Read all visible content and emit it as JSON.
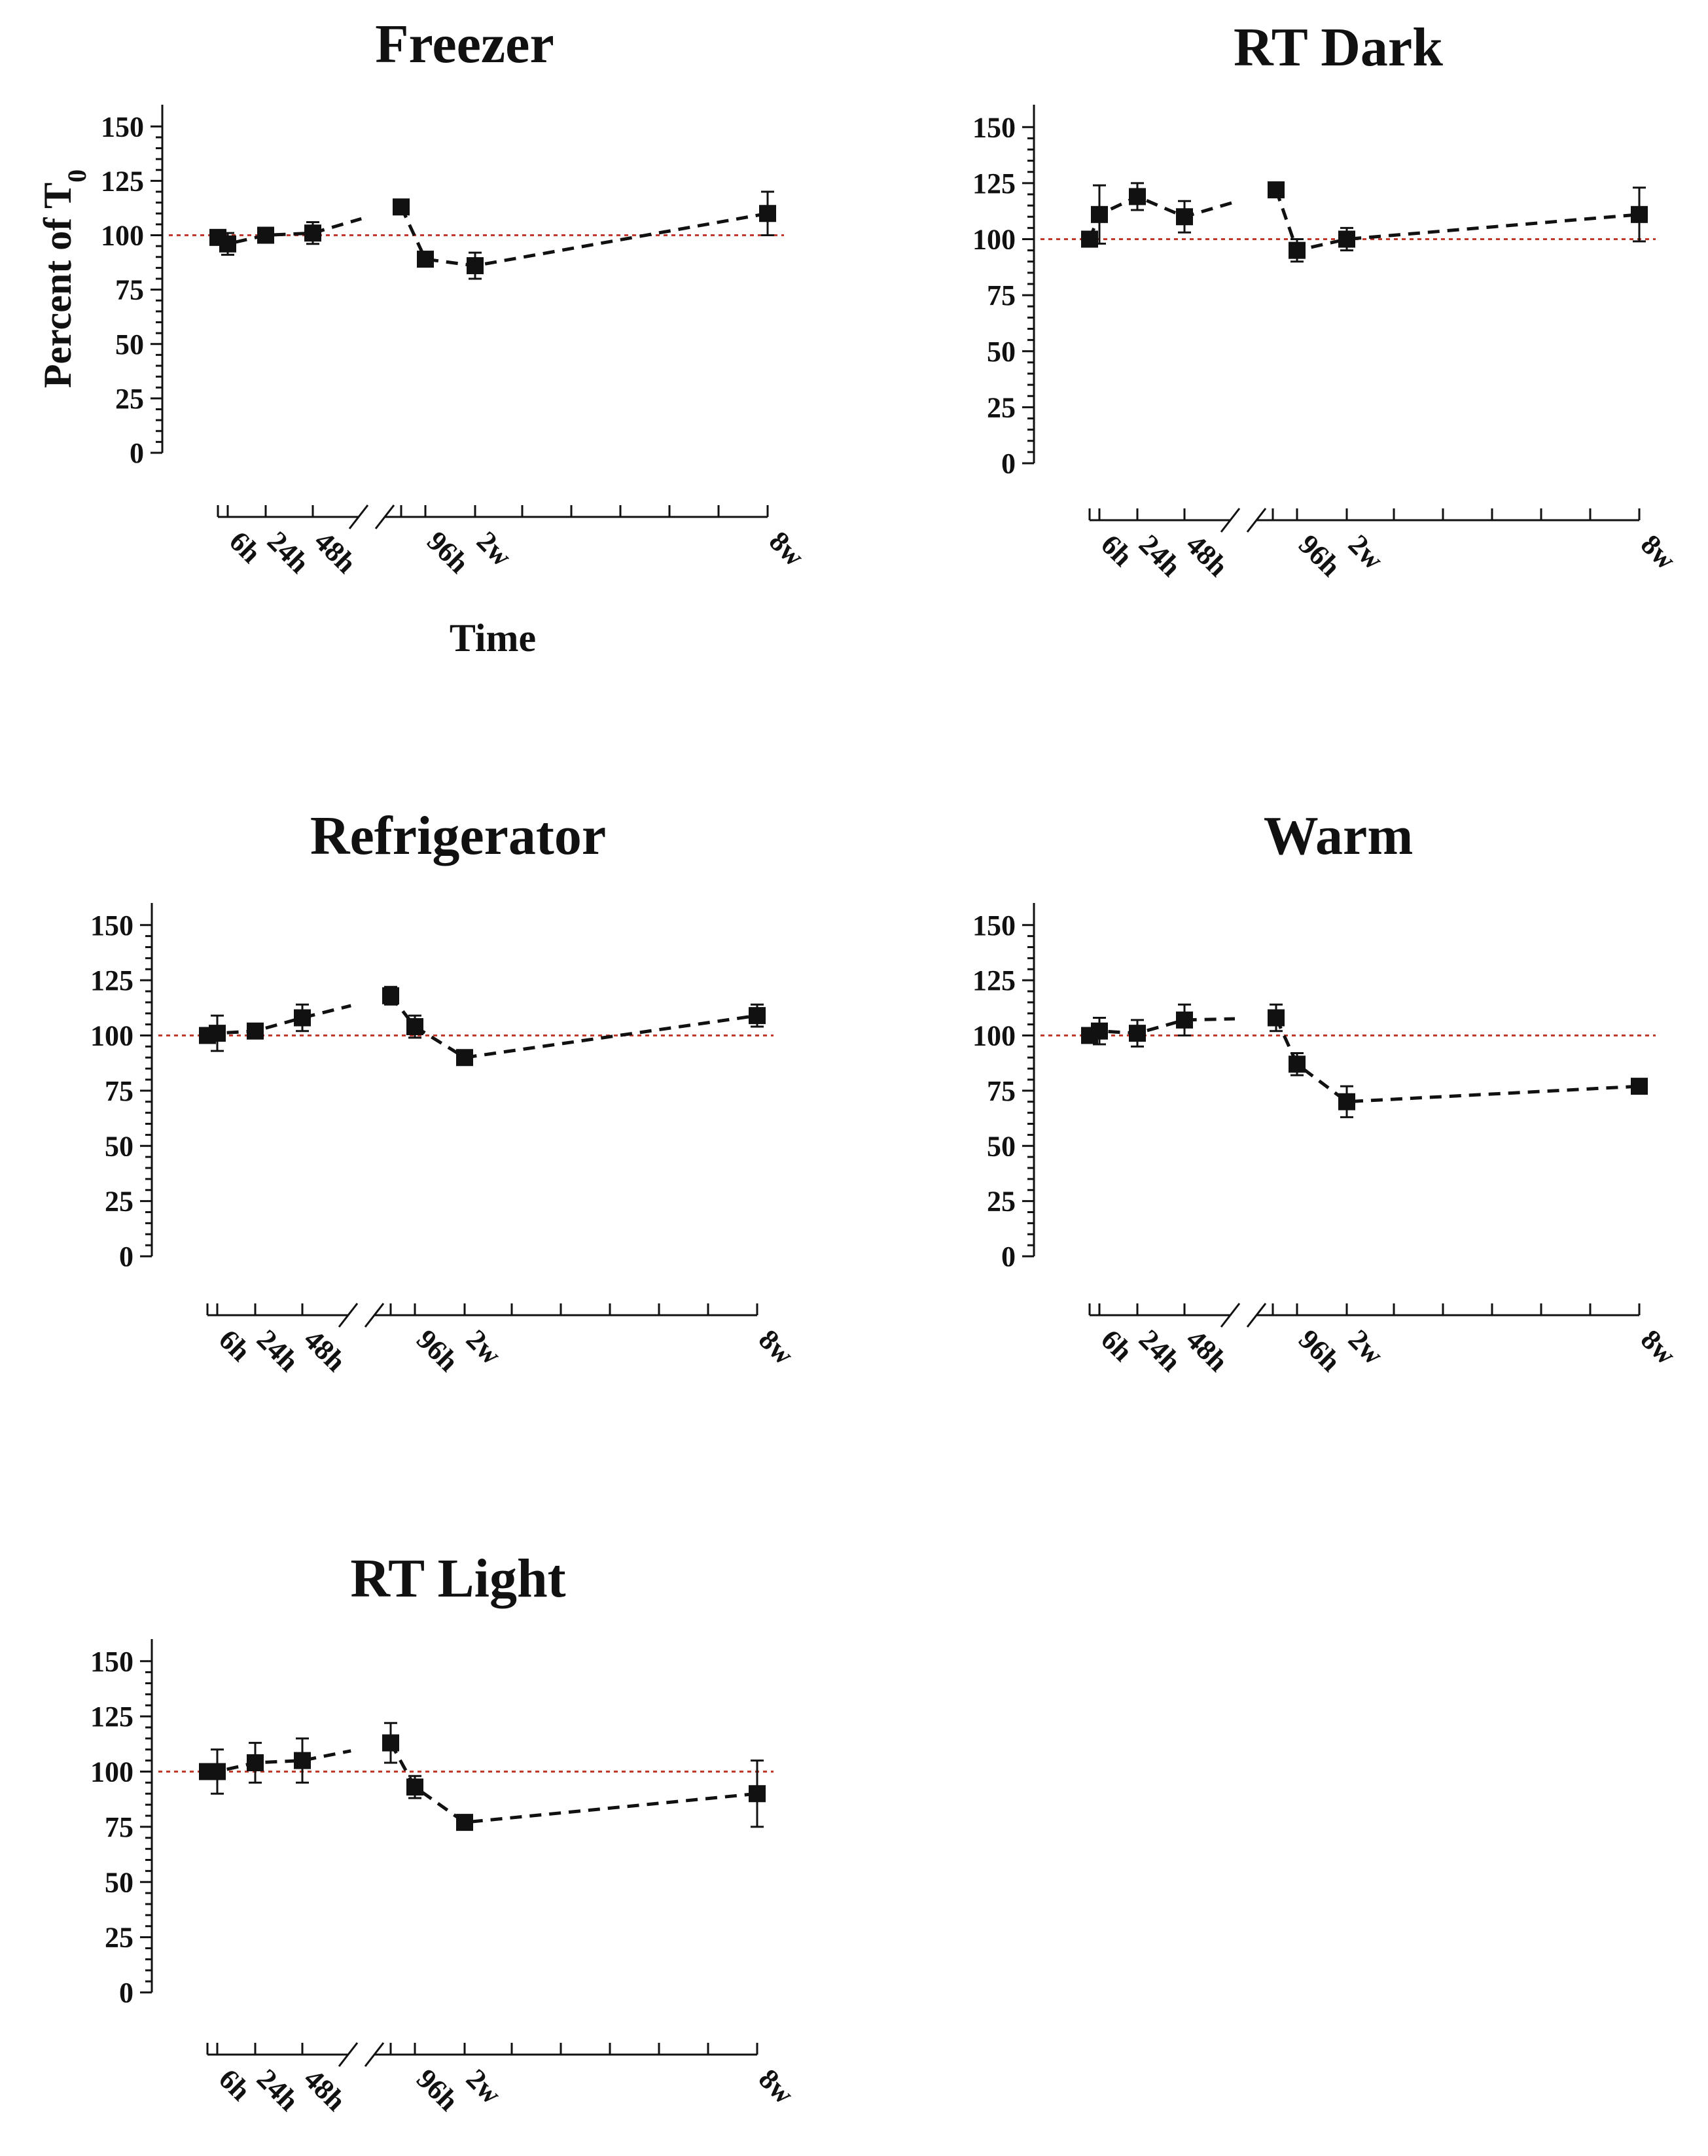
{
  "chart_data": [
    {
      "type": "line",
      "title": "Freezer",
      "ylabel": "Percent of T",
      "ylabel_sub": "0",
      "xlabel": "Time",
      "ylim": [
        0,
        160
      ],
      "yticks": [
        0,
        25,
        50,
        75,
        100,
        125,
        150
      ],
      "xtick_labels": [
        "6h",
        "24h",
        "48h",
        "96h",
        "2w",
        "8w"
      ],
      "reference_line": 100,
      "points": [
        {
          "x": "0h",
          "y": 99,
          "err": 3
        },
        {
          "x": "6h",
          "y": 96,
          "err": 5
        },
        {
          "x": "24h",
          "y": 100,
          "err": 2
        },
        {
          "x": "48h",
          "y": 101,
          "err": 5
        },
        {
          "x": "72h",
          "y": 113,
          "err": 3
        },
        {
          "x": "96h",
          "y": 89,
          "err": 3
        },
        {
          "x": "2w",
          "y": 86,
          "err": 6
        },
        {
          "x": "8w",
          "y": 110,
          "err": 10
        }
      ]
    },
    {
      "type": "line",
      "title": "RT Dark",
      "xlabel": "",
      "ylabel": "",
      "ylim": [
        0,
        160
      ],
      "yticks": [
        0,
        25,
        50,
        75,
        100,
        125,
        150
      ],
      "xtick_labels": [
        "6h",
        "24h",
        "48h",
        "96h",
        "2w",
        "8w"
      ],
      "reference_line": 100,
      "points": [
        {
          "x": "0h",
          "y": 100,
          "err": 2
        },
        {
          "x": "6h",
          "y": 111,
          "err": 13
        },
        {
          "x": "24h",
          "y": 119,
          "err": 6
        },
        {
          "x": "48h",
          "y": 110,
          "err": 7
        },
        {
          "x": "72h",
          "y": 122,
          "err": 3
        },
        {
          "x": "96h",
          "y": 95,
          "err": 5
        },
        {
          "x": "2w",
          "y": 100,
          "err": 5
        },
        {
          "x": "8w",
          "y": 111,
          "err": 12
        }
      ]
    },
    {
      "type": "line",
      "title": "Refrigerator",
      "xlabel": "",
      "ylabel": "",
      "ylim": [
        0,
        160
      ],
      "yticks": [
        0,
        25,
        50,
        75,
        100,
        125,
        150
      ],
      "xtick_labels": [
        "6h",
        "24h",
        "48h",
        "96h",
        "2w",
        "8w"
      ],
      "reference_line": 100,
      "points": [
        {
          "x": "0h",
          "y": 100,
          "err": 3
        },
        {
          "x": "6h",
          "y": 101,
          "err": 8
        },
        {
          "x": "24h",
          "y": 102,
          "err": 2
        },
        {
          "x": "48h",
          "y": 108,
          "err": 6
        },
        {
          "x": "72h",
          "y": 118,
          "err": 4
        },
        {
          "x": "96h",
          "y": 104,
          "err": 5
        },
        {
          "x": "2w",
          "y": 90,
          "err": 2
        },
        {
          "x": "8w",
          "y": 109,
          "err": 5
        }
      ]
    },
    {
      "type": "line",
      "title": "Warm",
      "xlabel": "",
      "ylabel": "",
      "ylim": [
        0,
        160
      ],
      "yticks": [
        0,
        25,
        50,
        75,
        100,
        125,
        150
      ],
      "xtick_labels": [
        "6h",
        "24h",
        "48h",
        "96h",
        "2w",
        "8w"
      ],
      "reference_line": 100,
      "points": [
        {
          "x": "0h",
          "y": 100,
          "err": 3
        },
        {
          "x": "6h",
          "y": 102,
          "err": 6
        },
        {
          "x": "24h",
          "y": 101,
          "err": 6
        },
        {
          "x": "48h",
          "y": 107,
          "err": 7
        },
        {
          "x": "72h",
          "y": 108,
          "err": 6
        },
        {
          "x": "96h",
          "y": 87,
          "err": 5
        },
        {
          "x": "2w",
          "y": 70,
          "err": 7
        },
        {
          "x": "8w",
          "y": 77,
          "err": 2
        }
      ]
    },
    {
      "type": "line",
      "title": "RT Light",
      "xlabel": "",
      "ylabel": "",
      "ylim": [
        0,
        160
      ],
      "yticks": [
        0,
        25,
        50,
        75,
        100,
        125,
        150
      ],
      "xtick_labels": [
        "6h",
        "24h",
        "48h",
        "96h",
        "2w",
        "8w"
      ],
      "reference_line": 100,
      "points": [
        {
          "x": "0h",
          "y": 100,
          "err": 3
        },
        {
          "x": "6h",
          "y": 100,
          "err": 10
        },
        {
          "x": "24h",
          "y": 104,
          "err": 9
        },
        {
          "x": "48h",
          "y": 105,
          "err": 10
        },
        {
          "x": "72h",
          "y": 113,
          "err": 9
        },
        {
          "x": "96h",
          "y": 93,
          "err": 5
        },
        {
          "x": "2w",
          "y": 77,
          "err": 3
        },
        {
          "x": "8w",
          "y": 90,
          "err": 15
        }
      ]
    }
  ],
  "colors": {
    "series": "#111111",
    "reference": "#c0392b"
  }
}
